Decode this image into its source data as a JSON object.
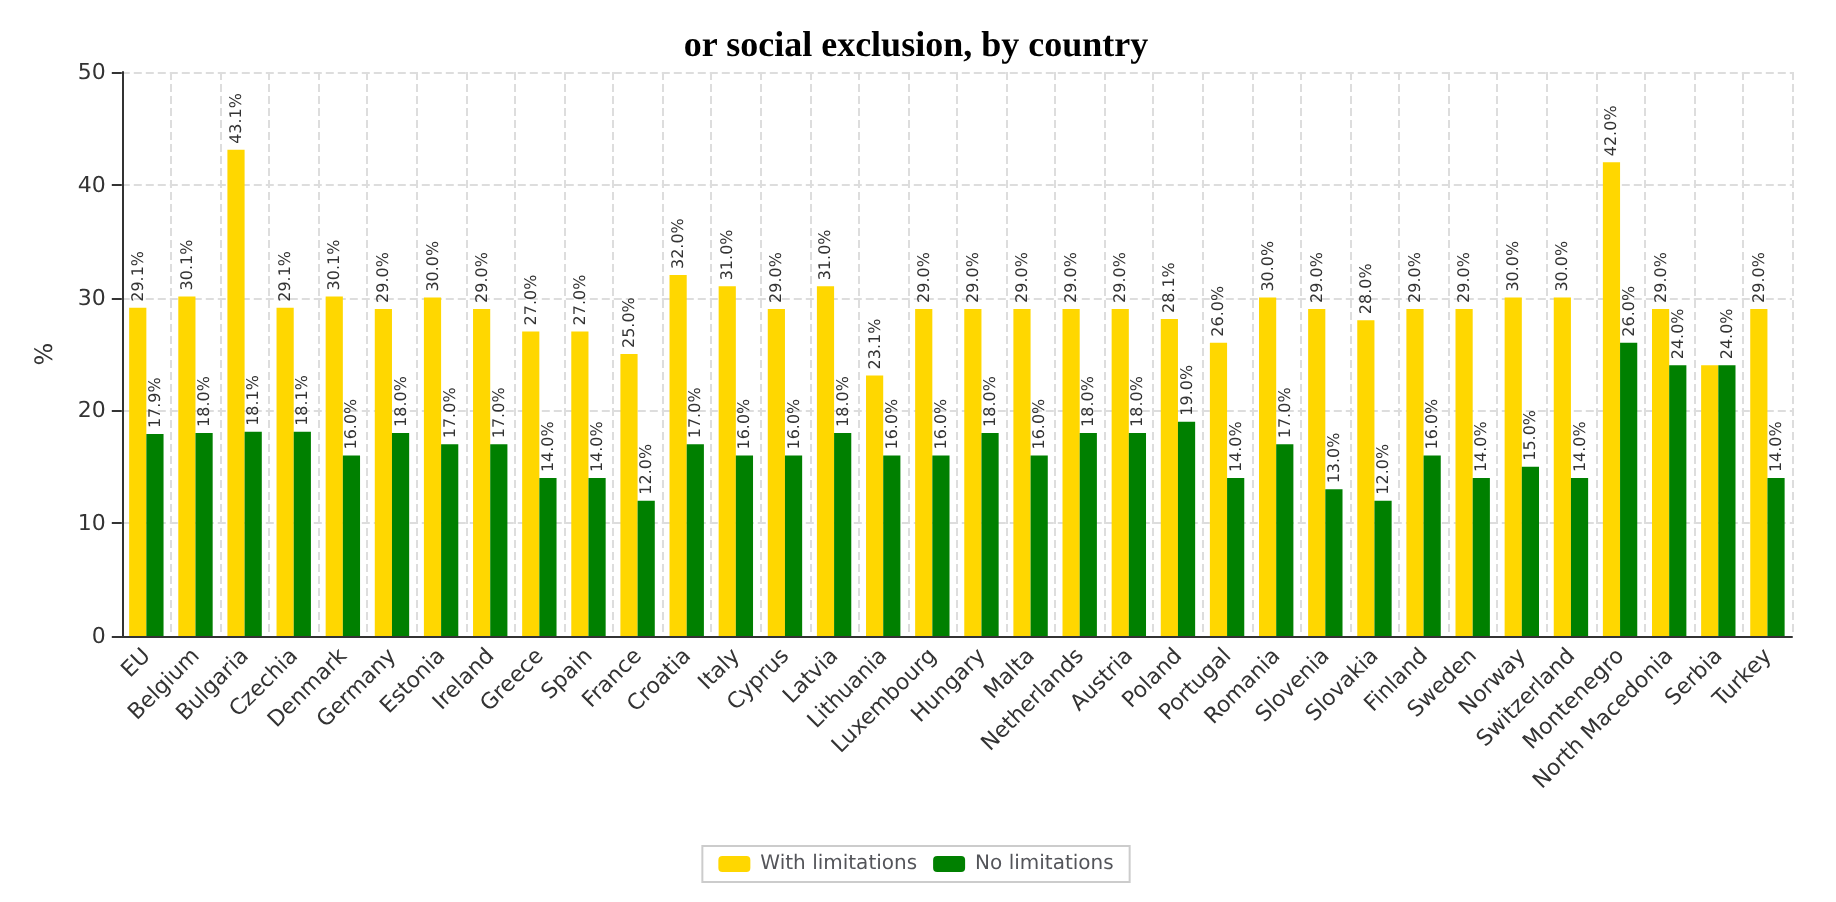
{
  "chart_data": {
    "type": "bar",
    "title": "or social exclusion, by country",
    "ylabel": "%",
    "categories": [
      "EU",
      "Belgium",
      "Bulgaria",
      "Czechia",
      "Denmark",
      "Germany",
      "Estonia",
      "Ireland",
      "Greece",
      "Spain",
      "France",
      "Croatia",
      "Italy",
      "Cyprus",
      "Latvia",
      "Lithuania",
      "Luxembourg",
      "Hungary",
      "Malta",
      "Netherlands",
      "Austria",
      "Poland",
      "Portugal",
      "Romania",
      "Slovenia",
      "Slovakia",
      "Finland",
      "Sweden",
      "Norway",
      "Switzerland",
      "Montenegro",
      "North Macedonia",
      "Serbia",
      "Turkey"
    ],
    "series": [
      {
        "name": "With limitations",
        "color": "#ffd700",
        "values": [
          29.1,
          30.1,
          43.1,
          29.1,
          30.1,
          29.0,
          30.0,
          29.0,
          27.0,
          27.0,
          25.0,
          32.0,
          31.0,
          29.0,
          31.0,
          23.1,
          29.0,
          29.0,
          29.0,
          29.0,
          29.0,
          28.1,
          26.0,
          30.0,
          29.0,
          28.0,
          29.0,
          29.0,
          30.0,
          30.0,
          42.0,
          29.0,
          24.0,
          29.0
        ],
        "value_labels": [
          "29.1%",
          "30.1%",
          "43.1%",
          "29.1%",
          "30.1%",
          "29.0%",
          "30.0%",
          "29.0%",
          "27.0%",
          "27.0%",
          "25.0%",
          "32.0%",
          "31.0%",
          "29.0%",
          "31.0%",
          "23.1%",
          "29.0%",
          "29.0%",
          "29.0%",
          "29.0%",
          "29.0%",
          "28.1%",
          "26.0%",
          "30.0%",
          "29.0%",
          "28.0%",
          "29.0%",
          "29.0%",
          "30.0%",
          "30.0%",
          "42.0%",
          "29.0%",
          null,
          "29.0%"
        ]
      },
      {
        "name": "No limitations",
        "color": "#008000",
        "values": [
          17.9,
          18.0,
          18.1,
          18.1,
          16.0,
          18.0,
          17.0,
          17.0,
          14.0,
          14.0,
          12.0,
          17.0,
          16.0,
          16.0,
          18.0,
          16.0,
          16.0,
          18.0,
          16.0,
          18.0,
          18.0,
          19.0,
          14.0,
          17.0,
          13.0,
          12.0,
          16.0,
          14.0,
          15.0,
          14.0,
          26.0,
          24.0,
          24.0,
          14.0
        ],
        "value_labels": [
          "17.9%",
          "18.0%",
          "18.1%",
          "18.1%",
          "16.0%",
          "18.0%",
          "17.0%",
          "17.0%",
          "14.0%",
          "14.0%",
          "12.0%",
          "17.0%",
          "16.0%",
          "16.0%",
          "18.0%",
          "16.0%",
          "16.0%",
          "18.0%",
          "16.0%",
          "18.0%",
          "18.0%",
          "19.0%",
          "14.0%",
          "17.0%",
          "13.0%",
          "12.0%",
          "16.0%",
          "14.0%",
          "15.0%",
          "14.0%",
          "26.0%",
          "24.0%",
          "24.0%",
          "14.0%"
        ]
      }
    ],
    "ylim": [
      0,
      50
    ],
    "yticks": [
      0,
      10,
      20,
      30,
      40,
      50
    ],
    "grid": true,
    "legend": "bottom"
  }
}
